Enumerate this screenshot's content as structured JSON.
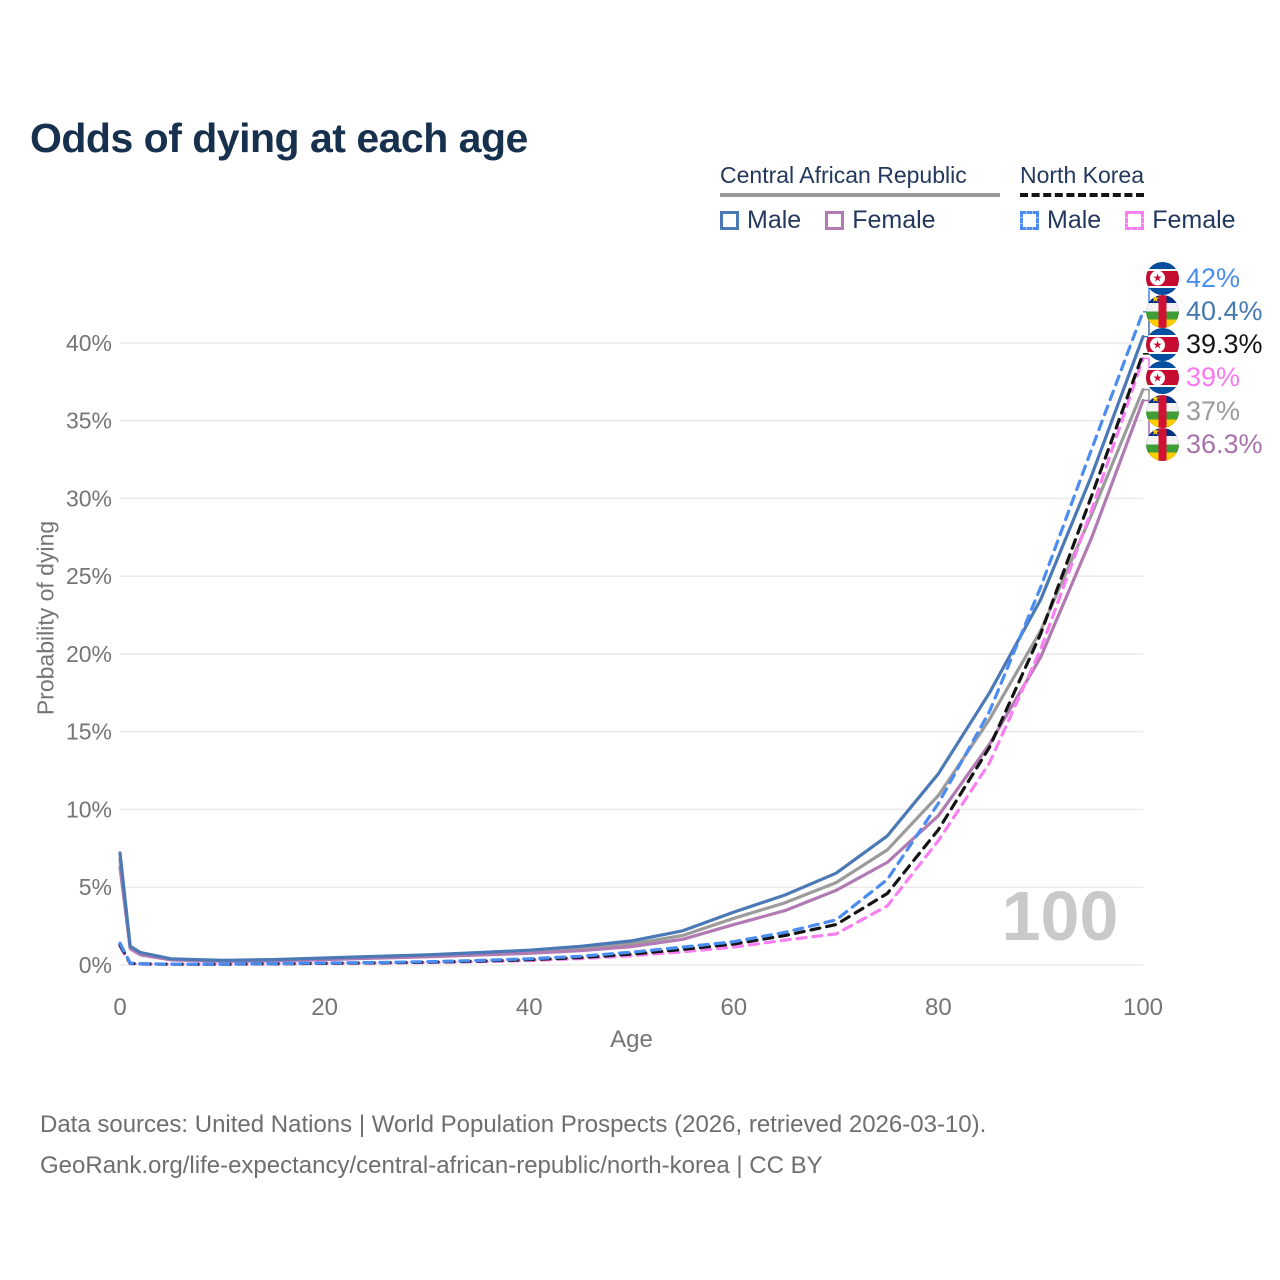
{
  "title": "Odds of dying at each age",
  "legend": {
    "groups": [
      {
        "label": "Central African Republic",
        "style": "solid",
        "items": [
          {
            "label": "Male",
            "color": "#4a79b5",
            "dashed": false
          },
          {
            "label": "Female",
            "color": "#b27ab2",
            "dashed": false
          }
        ]
      },
      {
        "label": "North Korea",
        "style": "dashed",
        "items": [
          {
            "label": "Male",
            "color": "#4b8cf0",
            "dashed": true
          },
          {
            "label": "Female",
            "color": "#f97ef2",
            "dashed": true
          }
        ]
      }
    ]
  },
  "chart_data": {
    "type": "line",
    "title": "Odds of dying at each age",
    "xlabel": "Age",
    "ylabel": "Probability of dying",
    "xlim": [
      0,
      100
    ],
    "ylim": [
      0,
      43.5
    ],
    "x_ticks": [
      0,
      20,
      40,
      60,
      80,
      100
    ],
    "y_ticks": [
      {
        "v": 0,
        "label": "0%"
      },
      {
        "v": 5,
        "label": "5%"
      },
      {
        "v": 10,
        "label": "10%"
      },
      {
        "v": 15,
        "label": "15%"
      },
      {
        "v": 20,
        "label": "20%"
      },
      {
        "v": 25,
        "label": "25%"
      },
      {
        "v": 30,
        "label": "30%"
      },
      {
        "v": 35,
        "label": "35%"
      },
      {
        "v": 40,
        "label": "40%"
      }
    ],
    "grid": "horizontal",
    "watermark": "100",
    "ages": [
      0,
      1,
      2,
      5,
      10,
      15,
      20,
      25,
      30,
      35,
      40,
      45,
      50,
      55,
      60,
      65,
      70,
      75,
      80,
      85,
      90,
      95,
      100
    ],
    "series": [
      {
        "name": "Central African Republic Total",
        "country": "central-african-republic",
        "group": "Total",
        "color": "#9b9b9b",
        "dashed": false,
        "values": [
          6.8,
          1.1,
          0.7,
          0.37,
          0.27,
          0.3,
          0.4,
          0.5,
          0.6,
          0.72,
          0.85,
          1.05,
          1.35,
          1.9,
          3.0,
          4.0,
          5.3,
          7.4,
          10.9,
          15.8,
          21.5,
          29.0,
          37.0
        ]
      },
      {
        "name": "Central African Republic Female",
        "country": "central-african-republic",
        "group": "Female",
        "color": "#b27ab2",
        "dashed": false,
        "values": [
          6.3,
          1.05,
          0.65,
          0.33,
          0.24,
          0.27,
          0.35,
          0.44,
          0.53,
          0.64,
          0.75,
          0.92,
          1.18,
          1.65,
          2.6,
          3.5,
          4.8,
          6.6,
          9.6,
          14.2,
          19.8,
          27.5,
          36.3
        ]
      },
      {
        "name": "Central African Republic Male",
        "country": "central-african-republic",
        "group": "Male",
        "color": "#4a79b5",
        "dashed": false,
        "values": [
          7.2,
          1.2,
          0.8,
          0.4,
          0.3,
          0.35,
          0.45,
          0.55,
          0.65,
          0.8,
          0.95,
          1.2,
          1.55,
          2.2,
          3.4,
          4.5,
          5.9,
          8.3,
          12.3,
          17.5,
          23.5,
          31.5,
          40.4
        ]
      },
      {
        "name": "North Korea Female",
        "country": "north-korea",
        "group": "Female",
        "color": "#f97ef2",
        "dashed": true,
        "values": [
          1.2,
          0.09,
          0.06,
          0.05,
          0.05,
          0.07,
          0.1,
          0.12,
          0.16,
          0.21,
          0.29,
          0.41,
          0.6,
          0.85,
          1.15,
          1.6,
          2.0,
          3.8,
          8.0,
          13.0,
          20.3,
          29.3,
          39.0
        ]
      },
      {
        "name": "North Korea Total",
        "country": "north-korea",
        "group": "Total",
        "color": "#141414",
        "dashed": true,
        "values": [
          1.3,
          0.1,
          0.07,
          0.05,
          0.05,
          0.08,
          0.11,
          0.14,
          0.18,
          0.25,
          0.34,
          0.48,
          0.7,
          1.0,
          1.35,
          1.9,
          2.6,
          4.6,
          8.7,
          14.0,
          21.3,
          30.2,
          39.3
        ]
      },
      {
        "name": "North Korea Male",
        "country": "north-korea",
        "group": "Male",
        "color": "#4b8cf0",
        "dashed": true,
        "values": [
          1.4,
          0.12,
          0.08,
          0.06,
          0.06,
          0.09,
          0.13,
          0.16,
          0.21,
          0.29,
          0.4,
          0.56,
          0.82,
          1.15,
          1.5,
          2.1,
          2.9,
          5.5,
          10.4,
          16.3,
          24.3,
          33.2,
          42.0
        ]
      }
    ],
    "end_labels": [
      {
        "value": "42%",
        "color": "#4b8cf0",
        "flag": "north-korea",
        "series": "North Korea Male",
        "end_value": 42.0
      },
      {
        "value": "40.4%",
        "color": "#4679b2",
        "flag": "central-african-republic",
        "series": "Central African Republic Male",
        "end_value": 40.4
      },
      {
        "value": "39.3%",
        "color": "#141414",
        "flag": "north-korea",
        "series": "North Korea Total",
        "end_value": 39.3
      },
      {
        "value": "39%",
        "color": "#f878f0",
        "flag": "north-korea",
        "series": "North Korea Female",
        "end_value": 39.0
      },
      {
        "value": "37%",
        "color": "#9a9a9a",
        "flag": "central-african-republic",
        "series": "Central African Republic Total",
        "end_value": 37.0
      },
      {
        "value": "36.3%",
        "color": "#a873ab",
        "flag": "central-african-republic",
        "series": "Central African Republic Female",
        "end_value": 36.3
      }
    ]
  },
  "footer": {
    "line1": "Data sources: United Nations | World Population Prospects (2026, retrieved 2026-03-10).",
    "line2": "GeoRank.org/life-expectancy/central-african-republic/north-korea | CC BY"
  }
}
